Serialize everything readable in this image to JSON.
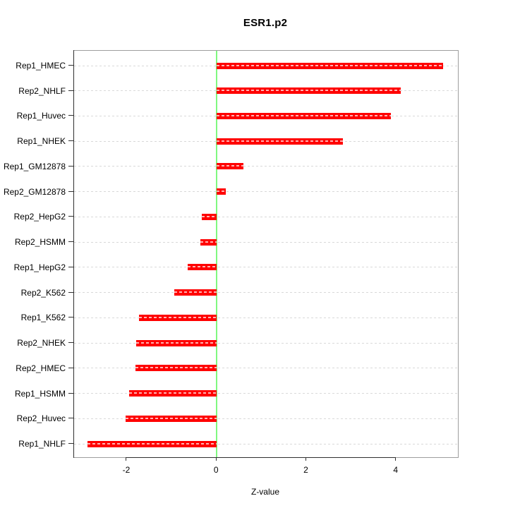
{
  "chart_data": {
    "type": "bar",
    "orientation": "horizontal",
    "title": "ESR1.p2",
    "xlabel": "Z-value",
    "ylabel": "",
    "categories": [
      "Rep1_HMEC",
      "Rep2_NHLF",
      "Rep1_Huvec",
      "Rep1_NHEK",
      "Rep1_GM12878",
      "Rep2_GM12878",
      "Rep2_HepG2",
      "Rep2_HSMM",
      "Rep1_HepG2",
      "Rep2_K562",
      "Rep1_K562",
      "Rep2_NHEK",
      "Rep2_HMEC",
      "Rep1_HSMM",
      "Rep2_Huvec",
      "Rep1_NHLF"
    ],
    "values": [
      5.05,
      4.11,
      3.89,
      2.82,
      0.6,
      0.21,
      -0.32,
      -0.35,
      -0.64,
      -0.94,
      -1.72,
      -1.79,
      -1.8,
      -1.94,
      -2.03,
      -2.87
    ],
    "x_ticks": [
      -2,
      0,
      2,
      4
    ],
    "xlim": [
      -3.17,
      5.38
    ],
    "grid": true,
    "legend": null,
    "colors": {
      "bar": "#ff0000",
      "zero_line": "#80f880",
      "grid_line": "#d9d9d9",
      "box_border": "#9e9e9e",
      "axis": "#303030",
      "text": "#000000"
    }
  }
}
